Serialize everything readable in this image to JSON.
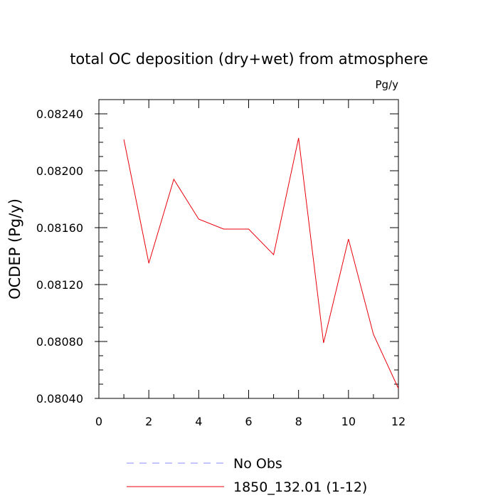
{
  "chart_data": {
    "type": "line",
    "title": "total OC deposition (dry+wet) from atmosphere",
    "units": "Pg/y",
    "ylabel": "OCDEP  (Pg/y)",
    "xlim": [
      0,
      12
    ],
    "ylim": [
      0.0804,
      0.0825
    ],
    "x_ticks": [
      "0",
      "2",
      "4",
      "6",
      "8",
      "10",
      "12"
    ],
    "y_ticks": [
      "0.08040",
      "0.08080",
      "0.08120",
      "0.08160",
      "0.08200",
      "0.08240"
    ],
    "series": [
      {
        "name": "No Obs",
        "color": "#8a8aff",
        "style": "dashed",
        "x": [],
        "values": []
      },
      {
        "name": "1850_132.01 (1-12)",
        "color": "#e8000b",
        "style": "solid",
        "x": [
          1,
          2,
          3,
          4,
          5,
          6,
          7,
          8,
          9,
          10,
          11,
          12
        ],
        "values": [
          0.08222,
          0.08135,
          0.08194,
          0.08166,
          0.08159,
          0.08159,
          0.08141,
          0.08223,
          0.08079,
          0.08152,
          0.08085,
          0.08047
        ]
      }
    ]
  }
}
